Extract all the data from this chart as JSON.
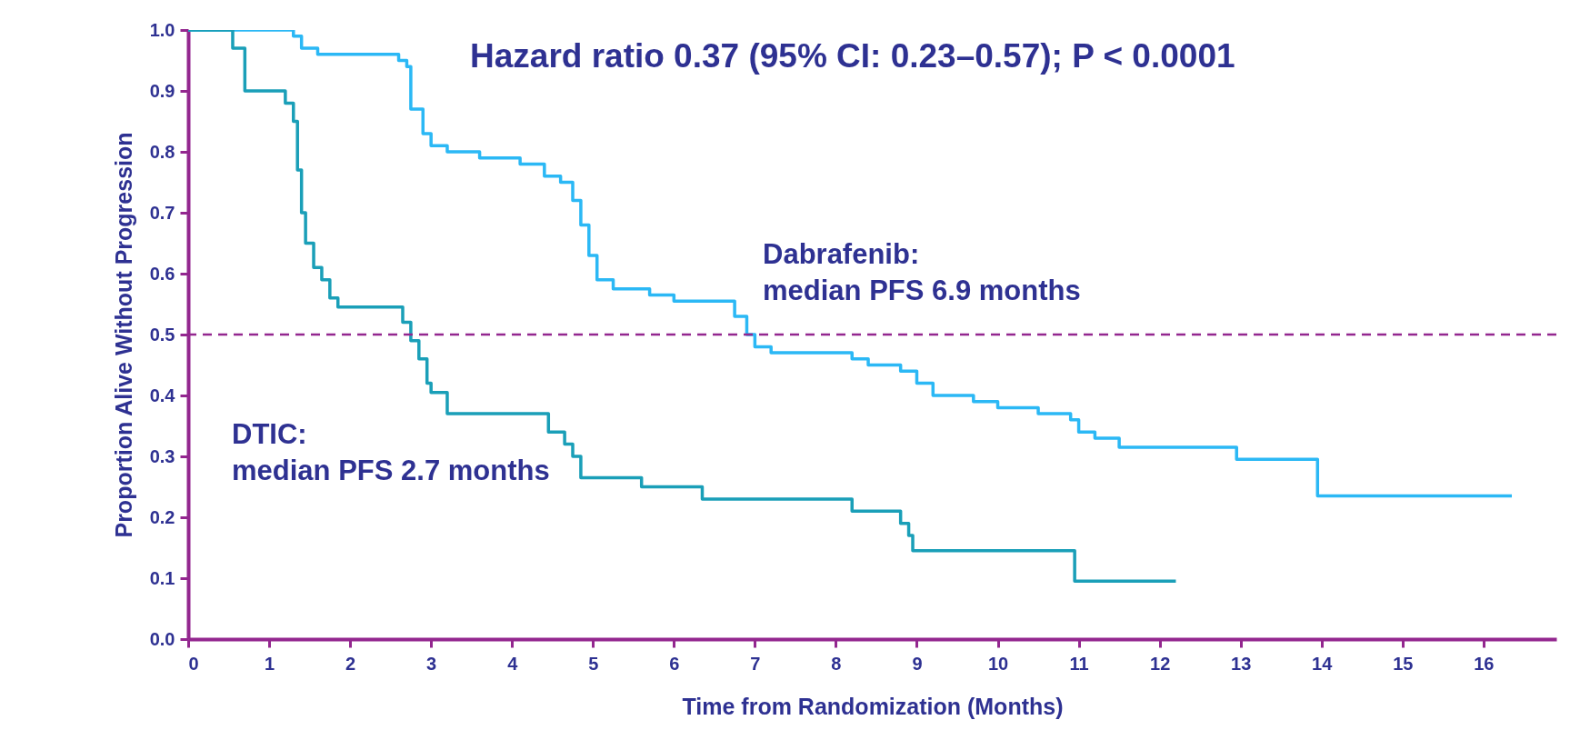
{
  "chart_data": {
    "type": "step",
    "xlabel": "Time from Randomization (Months)",
    "ylabel": "Proportion Alive Without Progression",
    "xlim": [
      0,
      16.9
    ],
    "ylim": [
      0,
      1.0
    ],
    "xticks": [
      0,
      1,
      2,
      3,
      4,
      5,
      6,
      7,
      8,
      9,
      10,
      11,
      12,
      13,
      14,
      15,
      16
    ],
    "yticks": [
      {
        "value": 0,
        "label": "0.0"
      },
      0.1,
      0.2,
      0.3,
      0.4,
      0.5,
      0.6,
      0.7,
      0.8,
      0.9,
      {
        "value": 1,
        "label": "1.0"
      }
    ],
    "grid": false,
    "marker": "none",
    "line_style": "solid",
    "series": [
      {
        "color": "#2bb8f5",
        "x": [
          0,
          1.3,
          1.4,
          1.6,
          2.6,
          2.7,
          2.75,
          2.9,
          3.0,
          3.2,
          3.6,
          4.1,
          4.4,
          4.6,
          4.75,
          4.85,
          4.95,
          5.05,
          5.25,
          5.7,
          6.0,
          6.75,
          6.9,
          7.0,
          7.2,
          8.2,
          8.4,
          8.8,
          9.0,
          9.2,
          9.7,
          10.0,
          10.5,
          10.9,
          11.0,
          11.2,
          11.5,
          12.95,
          13.95,
          16.35
        ],
        "values": [
          1.0,
          0.99,
          0.97,
          0.96,
          0.95,
          0.94,
          0.87,
          0.83,
          0.81,
          0.8,
          0.79,
          0.78,
          0.76,
          0.75,
          0.72,
          0.68,
          0.63,
          0.59,
          0.575,
          0.565,
          0.555,
          0.53,
          0.5,
          0.48,
          0.47,
          0.46,
          0.45,
          0.44,
          0.42,
          0.4,
          0.39,
          0.38,
          0.37,
          0.36,
          0.34,
          0.33,
          0.315,
          0.295,
          0.235,
          0.235
        ]
      },
      {
        "color": "#1a9fb8",
        "x": [
          0,
          0.55,
          0.7,
          1.2,
          1.3,
          1.35,
          1.4,
          1.45,
          1.55,
          1.65,
          1.75,
          1.85,
          2.65,
          2.75,
          2.85,
          2.95,
          3.0,
          3.2,
          4.45,
          4.65,
          4.75,
          4.85,
          5.6,
          6.35,
          8.2,
          8.8,
          8.9,
          8.95,
          10.95,
          12.2
        ],
        "values": [
          1.0,
          0.97,
          0.9,
          0.88,
          0.85,
          0.77,
          0.7,
          0.65,
          0.61,
          0.59,
          0.56,
          0.545,
          0.52,
          0.49,
          0.46,
          0.42,
          0.405,
          0.37,
          0.34,
          0.32,
          0.3,
          0.265,
          0.25,
          0.23,
          0.21,
          0.19,
          0.17,
          0.145,
          0.095,
          0.095
        ]
      }
    ],
    "ref_lines": [
      {
        "axis": "y",
        "value": 0.5,
        "color": "#93278f",
        "line_style": "dashed"
      }
    ],
    "annotations": [
      "Hazard ratio 0.37 (95% CI: 0.23–0.57); P < 0.0001",
      "Dabrafenib:\nmedian PFS 6.9 months",
      "DTIC:\nmedian PFS 2.7 months"
    ]
  }
}
